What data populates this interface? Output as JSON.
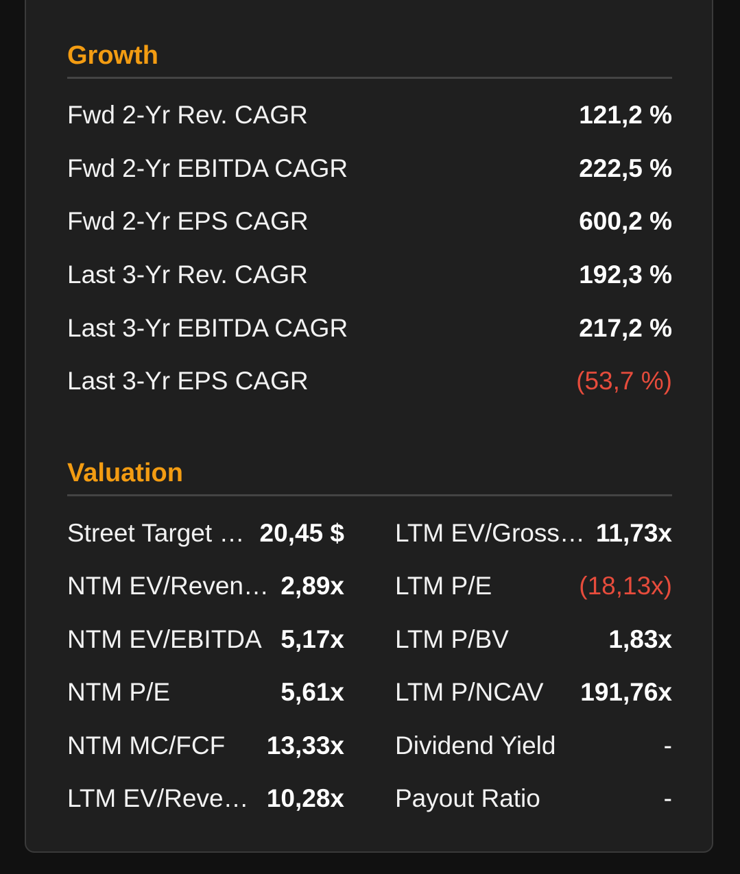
{
  "growth": {
    "title": "Growth",
    "rows": [
      {
        "label": "Fwd 2-Yr Rev. CAGR",
        "value": "121,2 %"
      },
      {
        "label": "Fwd 2-Yr EBITDA CAGR",
        "value": "222,5 %"
      },
      {
        "label": "Fwd 2-Yr EPS CAGR",
        "value": "600,2 %"
      },
      {
        "label": "Last 3-Yr Rev. CAGR",
        "value": "192,3 %"
      },
      {
        "label": "Last 3-Yr EBITDA CAGR",
        "value": "217,2 %"
      },
      {
        "label": "Last 3-Yr EPS CAGR",
        "value": "(53,7 %)"
      }
    ]
  },
  "valuation": {
    "title": "Valuation",
    "left": [
      {
        "label": "Street Target …",
        "value": "20,45 $"
      },
      {
        "label": "NTM EV/Reven…",
        "value": "2,89x"
      },
      {
        "label": "NTM EV/EBITDA",
        "value": "5,17x"
      },
      {
        "label": "NTM P/E",
        "value": "5,61x"
      },
      {
        "label": "NTM MC/FCF",
        "value": "13,33x"
      },
      {
        "label": "LTM EV/Reven…",
        "value": "10,28x"
      }
    ],
    "right": [
      {
        "label": "LTM EV/Gross …",
        "value": "11,73x"
      },
      {
        "label": "LTM P/E",
        "value": "(18,13x)"
      },
      {
        "label": "LTM P/BV",
        "value": "1,83x"
      },
      {
        "label": "LTM P/NCAV",
        "value": "191,76x"
      },
      {
        "label": "Dividend Yield",
        "value": "-"
      },
      {
        "label": "Payout Ratio",
        "value": "-"
      }
    ]
  },
  "colors": {
    "accent": "#f39c12",
    "negative": "#e74c3c",
    "background": "#1f1f1f"
  }
}
